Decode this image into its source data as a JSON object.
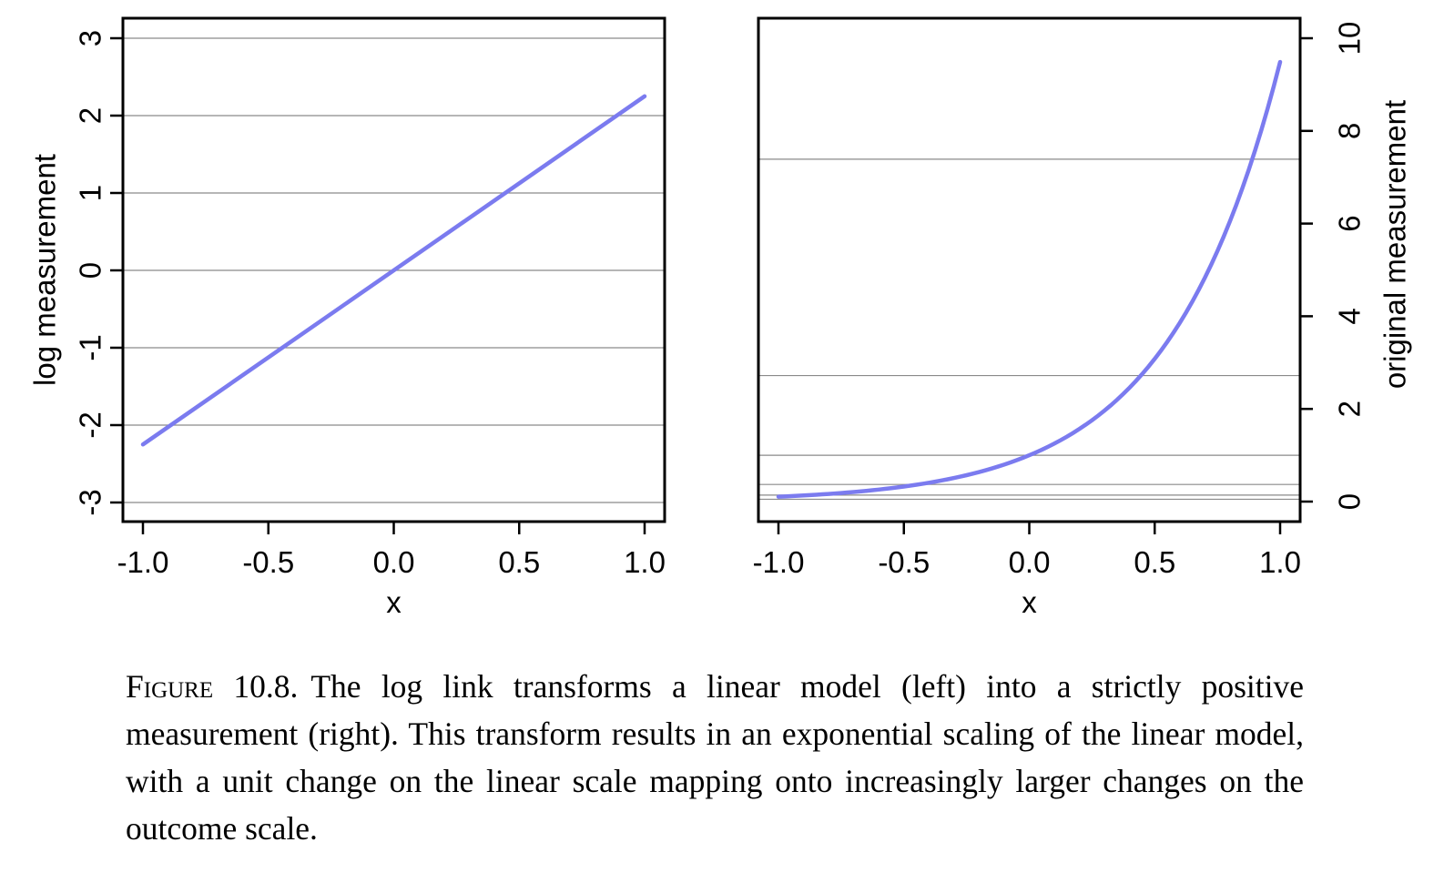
{
  "chart_data": [
    {
      "type": "line",
      "panel": "left",
      "title": "",
      "xlabel": "x",
      "ylabel": "log measurement",
      "xlim": [
        -1.0,
        1.0
      ],
      "ylim": [
        -3,
        3
      ],
      "xticks": [
        "-1.0",
        "-0.5",
        "0.0",
        "0.5",
        "1.0"
      ],
      "yticks": [
        "-3",
        "-2",
        "-1",
        "0",
        "1",
        "2",
        "3"
      ],
      "yaxis_side": "left",
      "gridlines_y": [
        -3,
        -2,
        -1,
        0,
        1,
        2,
        3
      ],
      "series": [
        {
          "color": "#7b7bef",
          "x": [
            -1.0,
            1.0
          ],
          "y": [
            -2.25,
            2.25
          ]
        }
      ]
    },
    {
      "type": "line",
      "panel": "right",
      "title": "",
      "xlabel": "x",
      "ylabel": "original measurement",
      "xlim": [
        -1.0,
        1.0
      ],
      "ylim": [
        0,
        10
      ],
      "xticks": [
        "-1.0",
        "-0.5",
        "0.0",
        "0.5",
        "1.0"
      ],
      "yticks": [
        "0",
        "2",
        "4",
        "6",
        "8",
        "10"
      ],
      "yaxis_side": "right",
      "gridlines_y": [
        0.05,
        0.14,
        0.37,
        1.0,
        2.72,
        7.39
      ],
      "series": [
        {
          "color": "#7b7bef",
          "x": [
            -1.0,
            -0.75,
            -0.5,
            -0.25,
            0.0,
            0.25,
            0.5,
            0.75,
            1.0
          ],
          "y": [
            0.11,
            0.19,
            0.32,
            0.57,
            1.0,
            1.75,
            3.08,
            5.4,
            9.49
          ]
        }
      ]
    }
  ],
  "caption": {
    "label": "Figure 10.8.",
    "text": "The log link transforms a linear model (left) into a strictly positive measurement (right). This transform results in an exponential scaling of the linear model, with a unit change on the linear scale mapping onto increasingly larger changes on the outcome scale."
  }
}
